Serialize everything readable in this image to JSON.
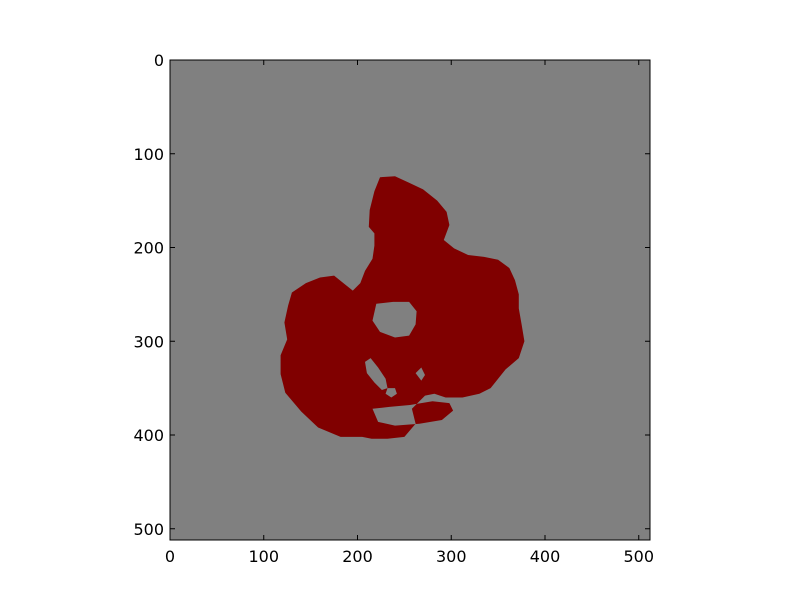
{
  "chart_data": {
    "type": "heatmap",
    "title": "",
    "xlabel": "",
    "ylabel": "",
    "xlim": [
      0,
      512
    ],
    "ylim": [
      512,
      0
    ],
    "y_axis_inverted": true,
    "grid": false,
    "x_ticks": [
      {
        "value": 0,
        "label": "0"
      },
      {
        "value": 100,
        "label": "100"
      },
      {
        "value": 200,
        "label": "200"
      },
      {
        "value": 300,
        "label": "300"
      },
      {
        "value": 400,
        "label": "400"
      },
      {
        "value": 500,
        "label": "500"
      }
    ],
    "y_ticks": [
      {
        "value": 0,
        "label": "0"
      },
      {
        "value": 100,
        "label": "100"
      },
      {
        "value": 200,
        "label": "200"
      },
      {
        "value": 300,
        "label": "300"
      },
      {
        "value": 400,
        "label": "400"
      },
      {
        "value": 500,
        "label": "500"
      }
    ],
    "colors": {
      "background": "#808080",
      "mask": "#800000"
    },
    "mask_outline": [
      [
        224,
        125
      ],
      [
        240,
        124
      ],
      [
        255,
        131
      ],
      [
        270,
        138
      ],
      [
        285,
        150
      ],
      [
        295,
        162
      ],
      [
        298,
        176
      ],
      [
        292,
        192
      ],
      [
        303,
        201
      ],
      [
        318,
        208
      ],
      [
        335,
        210
      ],
      [
        350,
        213
      ],
      [
        362,
        222
      ],
      [
        368,
        235
      ],
      [
        372,
        250
      ],
      [
        372,
        265
      ],
      [
        375,
        282
      ],
      [
        378,
        300
      ],
      [
        372,
        318
      ],
      [
        358,
        330
      ],
      [
        350,
        340
      ],
      [
        342,
        350
      ],
      [
        330,
        356
      ],
      [
        312,
        360
      ],
      [
        294,
        360
      ],
      [
        282,
        356
      ],
      [
        272,
        358
      ],
      [
        258,
        372
      ],
      [
        262,
        388
      ],
      [
        250,
        402
      ],
      [
        232,
        404
      ],
      [
        215,
        404
      ],
      [
        205,
        402
      ],
      [
        182,
        402
      ],
      [
        158,
        392
      ],
      [
        140,
        375
      ],
      [
        123,
        355
      ],
      [
        118,
        335
      ],
      [
        118,
        315
      ],
      [
        125,
        298
      ],
      [
        122,
        280
      ],
      [
        126,
        262
      ],
      [
        130,
        248
      ],
      [
        145,
        238
      ],
      [
        160,
        232
      ],
      [
        175,
        230
      ],
      [
        185,
        238
      ],
      [
        195,
        246
      ],
      [
        203,
        238
      ],
      [
        208,
        225
      ],
      [
        216,
        212
      ],
      [
        218,
        198
      ],
      [
        218,
        185
      ],
      [
        212,
        178
      ],
      [
        213,
        160
      ],
      [
        218,
        140
      ]
    ],
    "holes": [
      {
        "name": "upper-inner-gap",
        "points": [
          [
            220,
            260
          ],
          [
            238,
            258
          ],
          [
            255,
            258
          ],
          [
            263,
            268
          ],
          [
            262,
            282
          ],
          [
            255,
            294
          ],
          [
            240,
            296
          ],
          [
            224,
            290
          ],
          [
            216,
            278
          ]
        ]
      },
      {
        "name": "diagonal-gap",
        "points": [
          [
            208,
            322
          ],
          [
            214,
            318
          ],
          [
            222,
            328
          ],
          [
            230,
            340
          ],
          [
            232,
            350
          ],
          [
            226,
            352
          ],
          [
            218,
            344
          ],
          [
            210,
            334
          ]
        ]
      },
      {
        "name": "small-gap",
        "points": [
          [
            232,
            350
          ],
          [
            240,
            350
          ],
          [
            242,
            356
          ],
          [
            236,
            360
          ],
          [
            230,
            356
          ]
        ]
      },
      {
        "name": "right-notch",
        "points": [
          [
            262,
            334
          ],
          [
            268,
            328
          ],
          [
            272,
            336
          ],
          [
            268,
            342
          ]
        ]
      },
      {
        "name": "lower-gap",
        "points": [
          [
            216,
            372
          ],
          [
            234,
            370
          ],
          [
            256,
            368
          ],
          [
            280,
            364
          ],
          [
            298,
            366
          ],
          [
            302,
            374
          ],
          [
            290,
            384
          ],
          [
            266,
            388
          ],
          [
            240,
            390
          ],
          [
            222,
            386
          ]
        ]
      }
    ]
  }
}
